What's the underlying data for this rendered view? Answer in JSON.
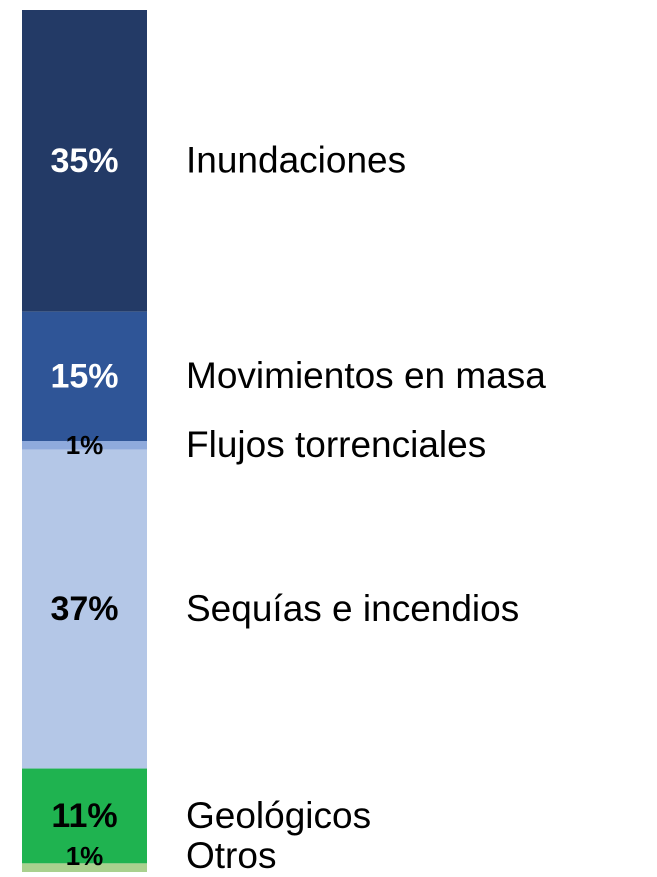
{
  "chart_data": {
    "type": "stacked-bar",
    "ylim": [
      0,
      100
    ],
    "series": [
      {
        "name": "Inundaciones",
        "color": "#233a66",
        "values": [
          35
        ],
        "value_labels": [
          "35%"
        ]
      },
      {
        "name": "Movimientos en masa",
        "color": "#2f5597",
        "values": [
          15
        ],
        "value_labels": [
          "15%"
        ]
      },
      {
        "name": "Flujos torrenciales",
        "color": "#8faadc",
        "values": [
          1
        ],
        "value_labels": [
          "1%"
        ]
      },
      {
        "name": "Sequías e incendios",
        "color": "#b4c7e7",
        "values": [
          37
        ],
        "value_labels": [
          "37%"
        ]
      },
      {
        "name": "Geológicos",
        "color": "#1fb350",
        "values": [
          11
        ],
        "value_labels": [
          "11%"
        ]
      },
      {
        "name": "Otros",
        "color": "#a9d18e",
        "values": [
          1
        ],
        "value_labels": [
          "1%"
        ]
      }
    ]
  }
}
